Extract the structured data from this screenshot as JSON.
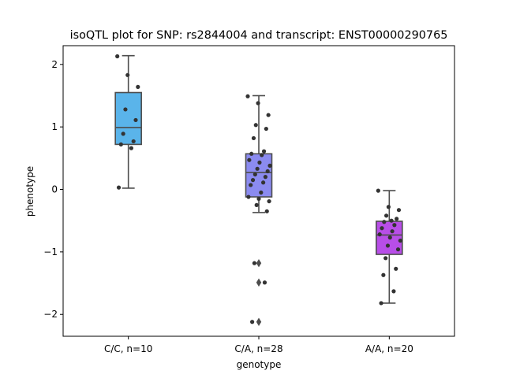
{
  "chart_data": {
    "type": "box",
    "title": "isoQTL plot for SNP: rs2844004 and transcript: ENST00000290765",
    "xlabel": "genotype",
    "ylabel": "phenotype",
    "ylim": [
      -2.35,
      2.3
    ],
    "yticks": [
      -2,
      -1,
      0,
      1,
      2
    ],
    "ytick_labels": [
      "−2",
      "−1",
      "0",
      "1",
      "2"
    ],
    "grid": false,
    "categories": [
      "C/C, n=10",
      "C/A, n=28",
      "A/A, n=20"
    ],
    "groups": [
      {
        "label": "C/C, n=10",
        "color": "#5ab4ea",
        "q1": 0.72,
        "median": 0.99,
        "q3": 1.55,
        "whisker_low": 0.02,
        "whisker_high": 2.14,
        "outliers": [],
        "points": [
          2.13,
          1.83,
          1.64,
          1.28,
          1.11,
          0.89,
          0.77,
          0.72,
          0.66,
          0.03
        ]
      },
      {
        "label": "C/A, n=28",
        "color": "#8b8bf0",
        "q1": -0.12,
        "median": 0.27,
        "q3": 0.57,
        "whisker_low": -0.37,
        "whisker_high": 1.5,
        "outliers": [
          -1.18,
          -1.49,
          -2.12
        ],
        "points": [
          1.49,
          1.38,
          1.19,
          1.03,
          0.97,
          0.82,
          0.61,
          0.57,
          0.55,
          0.47,
          0.43,
          0.38,
          0.33,
          0.29,
          0.24,
          0.2,
          0.15,
          0.11,
          0.07,
          -0.05,
          -0.12,
          -0.15,
          -0.19,
          -0.25,
          -0.35,
          -1.18,
          -1.49,
          -2.12
        ]
      },
      {
        "label": "A/A, n=20",
        "color": "#b84ee8",
        "q1": -1.04,
        "median": -0.73,
        "q3": -0.51,
        "whisker_low": -1.82,
        "whisker_high": -0.02,
        "outliers": [],
        "points": [
          -0.02,
          -0.28,
          -0.33,
          -0.42,
          -0.47,
          -0.52,
          -0.57,
          -0.62,
          -0.67,
          -0.72,
          -0.77,
          -0.82,
          -0.9,
          -0.96,
          -1.1,
          -1.27,
          -1.37,
          -1.63,
          -1.82,
          -0.5
        ]
      }
    ]
  }
}
